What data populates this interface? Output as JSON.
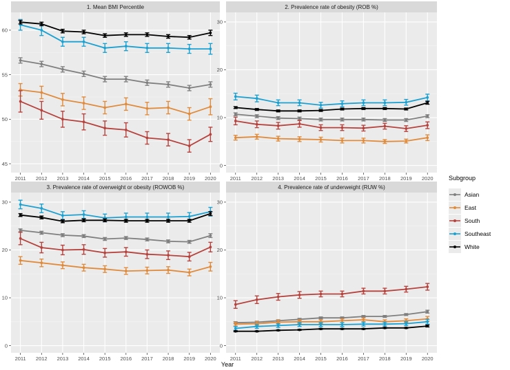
{
  "chart_data": [
    {
      "type": "line",
      "title": "1. Mean BMI Percentile",
      "xlabel": "Year",
      "ylabel": "",
      "x": [
        2011,
        2012,
        2013,
        2014,
        2015,
        2016,
        2017,
        2018,
        2019,
        2020
      ],
      "ylim": [
        44,
        62
      ],
      "yticks": [
        45,
        50,
        55,
        60
      ],
      "series": [
        {
          "name": "Asian",
          "values": [
            56.6,
            56.2,
            55.6,
            55.1,
            54.5,
            54.5,
            54.1,
            53.9,
            53.5,
            53.9
          ],
          "err": [
            0.3,
            0.3,
            0.3,
            0.3,
            0.3,
            0.3,
            0.3,
            0.3,
            0.3,
            0.3
          ]
        },
        {
          "name": "East",
          "values": [
            53.3,
            53.0,
            52.2,
            51.8,
            51.3,
            51.7,
            51.2,
            51.3,
            50.6,
            51.4
          ],
          "err": [
            0.7,
            0.7,
            0.7,
            0.7,
            0.7,
            0.7,
            0.7,
            0.7,
            0.7,
            0.9
          ]
        },
        {
          "name": "South",
          "values": [
            52.0,
            51.0,
            50.0,
            49.7,
            49.0,
            48.8,
            47.9,
            47.7,
            47.0,
            48.3
          ],
          "err": [
            1.2,
            1.0,
            0.9,
            0.9,
            0.8,
            0.8,
            0.7,
            0.7,
            0.7,
            0.8
          ]
        },
        {
          "name": "Southeast",
          "values": [
            60.6,
            60.0,
            58.7,
            58.7,
            58.0,
            58.2,
            58.0,
            58.0,
            57.9,
            57.9
          ],
          "err": [
            0.6,
            0.6,
            0.5,
            0.5,
            0.5,
            0.5,
            0.5,
            0.5,
            0.5,
            0.6
          ]
        },
        {
          "name": "White",
          "values": [
            60.9,
            60.7,
            59.9,
            59.8,
            59.4,
            59.5,
            59.5,
            59.3,
            59.2,
            59.7
          ],
          "err": [
            0.2,
            0.2,
            0.2,
            0.2,
            0.2,
            0.2,
            0.2,
            0.2,
            0.2,
            0.3
          ]
        }
      ]
    },
    {
      "type": "line",
      "title": "2. Prevalence rate of obesity (ROB %)",
      "xlabel": "Year",
      "ylabel": "",
      "x": [
        2011,
        2012,
        2013,
        2014,
        2015,
        2016,
        2017,
        2018,
        2019,
        2020
      ],
      "ylim": [
        -1.5,
        32
      ],
      "yticks": [
        0,
        10,
        20,
        30
      ],
      "series": [
        {
          "name": "Asian",
          "values": [
            10.7,
            10.3,
            9.9,
            9.8,
            9.6,
            9.6,
            9.6,
            9.5,
            9.5,
            10.3
          ],
          "err": [
            0.3,
            0.3,
            0.3,
            0.3,
            0.3,
            0.3,
            0.3,
            0.3,
            0.3,
            0.3
          ]
        },
        {
          "name": "East",
          "values": [
            5.8,
            6.0,
            5.6,
            5.5,
            5.4,
            5.2,
            5.2,
            5.0,
            5.1,
            5.8
          ],
          "err": [
            0.5,
            0.5,
            0.5,
            0.5,
            0.5,
            0.5,
            0.5,
            0.4,
            0.4,
            0.6
          ]
        },
        {
          "name": "South",
          "values": [
            9.3,
            8.6,
            8.3,
            8.7,
            7.9,
            7.9,
            7.8,
            8.2,
            7.7,
            8.4
          ],
          "err": [
            0.8,
            0.7,
            0.7,
            0.7,
            0.6,
            0.6,
            0.6,
            0.6,
            0.6,
            0.7
          ]
        },
        {
          "name": "Southeast",
          "values": [
            14.4,
            14.0,
            13.1,
            13.1,
            12.6,
            12.9,
            13.1,
            13.1,
            13.2,
            14.2
          ],
          "err": [
            0.7,
            0.7,
            0.6,
            0.6,
            0.6,
            0.6,
            0.6,
            0.6,
            0.6,
            0.7
          ]
        },
        {
          "name": "White",
          "values": [
            12.1,
            11.7,
            11.4,
            11.4,
            11.5,
            11.8,
            11.9,
            11.9,
            11.8,
            13.1
          ],
          "err": [
            0.2,
            0.2,
            0.2,
            0.2,
            0.2,
            0.2,
            0.2,
            0.2,
            0.2,
            0.3
          ]
        }
      ]
    },
    {
      "type": "line",
      "title": "3. Prevalence rate of overweight or obesity (ROWOB %)",
      "xlabel": "Year",
      "ylabel": "",
      "x": [
        2011,
        2012,
        2013,
        2014,
        2015,
        2016,
        2017,
        2018,
        2019,
        2020
      ],
      "ylim": [
        -1.5,
        32
      ],
      "yticks": [
        0,
        10,
        20,
        30
      ],
      "series": [
        {
          "name": "Asian",
          "values": [
            24.1,
            23.6,
            23.1,
            22.9,
            22.3,
            22.5,
            22.2,
            21.8,
            21.7,
            23.0
          ],
          "err": [
            0.3,
            0.3,
            0.3,
            0.3,
            0.3,
            0.3,
            0.3,
            0.3,
            0.3,
            0.4
          ]
        },
        {
          "name": "East",
          "values": [
            17.8,
            17.3,
            16.8,
            16.3,
            16.0,
            15.6,
            15.7,
            15.8,
            15.3,
            16.5
          ],
          "err": [
            0.8,
            0.8,
            0.7,
            0.7,
            0.7,
            0.7,
            0.7,
            0.7,
            0.7,
            0.9
          ]
        },
        {
          "name": "South",
          "values": [
            22.4,
            20.5,
            20.0,
            20.1,
            19.4,
            19.6,
            19.1,
            18.9,
            18.6,
            20.6
          ],
          "err": [
            1.3,
            1.1,
            1.0,
            1.0,
            0.9,
            0.9,
            0.9,
            0.9,
            0.9,
            1.0
          ]
        },
        {
          "name": "Southeast",
          "values": [
            29.5,
            28.7,
            27.2,
            27.4,
            26.7,
            26.9,
            26.9,
            26.9,
            27.0,
            28.0
          ],
          "err": [
            0.9,
            0.9,
            0.8,
            0.8,
            0.8,
            0.8,
            0.8,
            0.8,
            0.8,
            0.9
          ]
        },
        {
          "name": "White",
          "values": [
            27.3,
            26.8,
            26.0,
            26.2,
            26.2,
            26.1,
            26.1,
            26.1,
            26.1,
            27.6
          ],
          "err": [
            0.3,
            0.3,
            0.3,
            0.3,
            0.3,
            0.3,
            0.3,
            0.3,
            0.3,
            0.4
          ]
        }
      ]
    },
    {
      "type": "line",
      "title": "4. Prevalence rate of underweight (RUW %)",
      "xlabel": "Year",
      "ylabel": "",
      "x": [
        2011,
        2012,
        2013,
        2014,
        2015,
        2016,
        2017,
        2018,
        2019,
        2020
      ],
      "ylim": [
        -1.5,
        32
      ],
      "yticks": [
        0,
        10,
        20,
        30
      ],
      "series": [
        {
          "name": "Asian",
          "values": [
            4.8,
            4.9,
            5.2,
            5.5,
            5.8,
            5.8,
            6.1,
            6.1,
            6.5,
            7.1
          ],
          "err": [
            0.2,
            0.2,
            0.2,
            0.2,
            0.2,
            0.2,
            0.2,
            0.2,
            0.2,
            0.3
          ]
        },
        {
          "name": "East",
          "values": [
            4.5,
            4.6,
            4.9,
            5.0,
            5.0,
            5.2,
            5.4,
            5.0,
            5.2,
            5.6
          ],
          "err": [
            0.4,
            0.4,
            0.4,
            0.4,
            0.4,
            0.4,
            0.4,
            0.4,
            0.4,
            0.5
          ]
        },
        {
          "name": "South",
          "values": [
            8.6,
            9.6,
            10.2,
            10.6,
            10.8,
            10.8,
            11.4,
            11.4,
            11.8,
            12.3
          ],
          "err": [
            0.8,
            0.8,
            0.7,
            0.7,
            0.6,
            0.6,
            0.6,
            0.6,
            0.6,
            0.7
          ]
        },
        {
          "name": "Southeast",
          "values": [
            3.6,
            4.0,
            4.2,
            4.4,
            4.4,
            4.4,
            4.5,
            4.5,
            4.6,
            5.0
          ],
          "err": [
            0.4,
            0.4,
            0.4,
            0.4,
            0.4,
            0.4,
            0.4,
            0.4,
            0.4,
            0.5
          ]
        },
        {
          "name": "White",
          "values": [
            3.0,
            3.0,
            3.2,
            3.3,
            3.5,
            3.5,
            3.5,
            3.7,
            3.7,
            4.1
          ],
          "err": [
            0.1,
            0.1,
            0.1,
            0.1,
            0.1,
            0.1,
            0.1,
            0.1,
            0.1,
            0.2
          ]
        }
      ]
    }
  ],
  "legend": {
    "title": "Subgroup",
    "entries": [
      {
        "name": "Asian",
        "color": "#7f7f7f"
      },
      {
        "name": "East",
        "color": "#e08b3c"
      },
      {
        "name": "South",
        "color": "#b5423d"
      },
      {
        "name": "Southeast",
        "color": "#1ba1d1"
      },
      {
        "name": "White",
        "color": "#000000"
      }
    ]
  },
  "shared_xlabel": "Year"
}
